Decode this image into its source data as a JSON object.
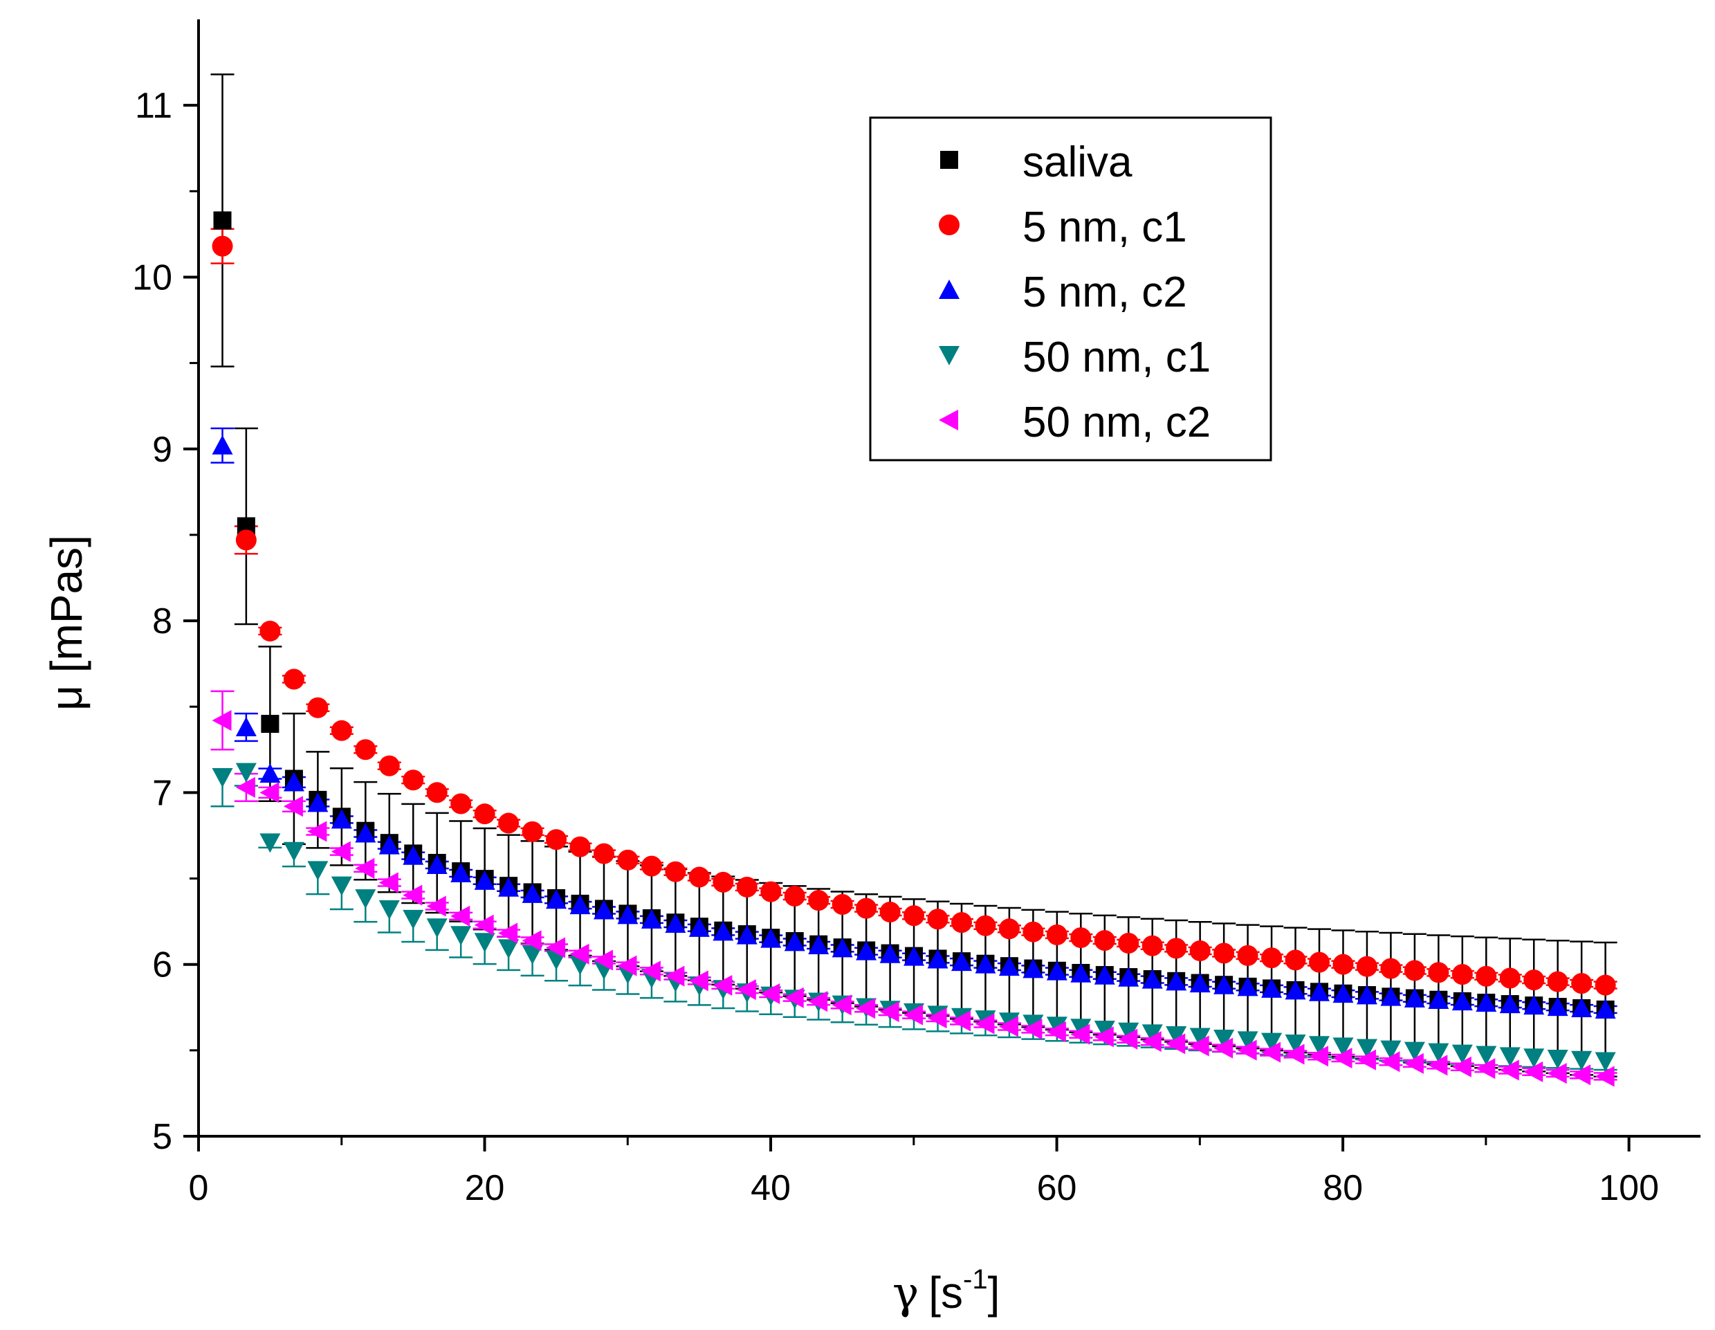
{
  "chart_data": {
    "type": "scatter",
    "title": "",
    "xlabel": "γ [s⁻¹]",
    "xlabel_parts": {
      "symbol": "γ",
      "open": "[s",
      "sup": "-1",
      "close": "]"
    },
    "ylabel": "μ [mPas]",
    "xlim": [
      0,
      105
    ],
    "ylim": [
      5,
      11.5
    ],
    "xticks": [
      0,
      20,
      40,
      60,
      80,
      100
    ],
    "yticks": [
      5,
      6,
      7,
      8,
      9,
      10,
      11
    ],
    "x_tick_labels": [
      "0",
      "20",
      "40",
      "60",
      "80",
      "100"
    ],
    "y_tick_labels": [
      "5",
      "6",
      "7",
      "8",
      "9",
      "10",
      "11"
    ],
    "legend_position": "top-right",
    "grid": false,
    "series": [
      {
        "name": "saliva",
        "marker": "square",
        "color": "#000000",
        "errorbar_style": "upper-lower",
        "points": [
          [
            1.67,
            10.33,
            0.85
          ],
          [
            3.33,
            8.55,
            0.57
          ],
          [
            5.0,
            7.4,
            0.45
          ],
          [
            6.67,
            7.08,
            0.38
          ]
        ],
        "tail_end": 5.73,
        "tail_err_start": 0.28,
        "tail_err_end": 0.39
      },
      {
        "name": "5 nm, c1",
        "marker": "circle",
        "color": "#ff0000",
        "errorbar_style": "small",
        "points": [
          [
            1.67,
            10.18,
            0.1
          ],
          [
            3.33,
            8.47,
            0.08
          ],
          [
            5.0,
            7.94,
            0.02
          ],
          [
            6.67,
            7.66,
            0.02
          ]
        ],
        "tail_end": 5.87,
        "tail_err": 0.02
      },
      {
        "name": "5 nm, c2",
        "marker": "triangle-up",
        "color": "#0000ff",
        "errorbar_style": "small",
        "points": [
          [
            1.67,
            9.02,
            0.1
          ],
          [
            3.33,
            7.38,
            0.08
          ],
          [
            5.0,
            7.11,
            0.03
          ],
          [
            6.67,
            7.06,
            0.03
          ]
        ],
        "tail_end": 5.73,
        "tail_err": 0.02
      },
      {
        "name": "50 nm, c1",
        "marker": "triangle-down",
        "color": "#008080",
        "errorbar_style": "lower",
        "points": [
          [
            1.67,
            7.09,
            0.17
          ],
          [
            3.33,
            7.12,
            0.08
          ],
          [
            5.0,
            6.71,
            0.03
          ],
          [
            6.67,
            6.66,
            0.09
          ]
        ],
        "tail_end": 5.43,
        "tail_err_start": 0.14,
        "tail_err_end": 0.05
      },
      {
        "name": "50 nm, c2",
        "marker": "triangle-left",
        "color": "#ff00ff",
        "errorbar_style": "upper-lower",
        "points": [
          [
            1.67,
            7.42,
            0.17
          ],
          [
            3.33,
            7.03,
            0.08
          ],
          [
            5.0,
            7.0,
            0.03
          ],
          [
            6.67,
            6.92,
            0.03
          ]
        ],
        "tail_end": 5.34,
        "tail_err": 0.02
      }
    ],
    "x_step": 1.667,
    "x_end": 100
  },
  "legend": {
    "items": [
      {
        "label": "saliva"
      },
      {
        "label": "5 nm, c1"
      },
      {
        "label": "5 nm, c2"
      },
      {
        "label": "50 nm, c1"
      },
      {
        "label": "50 nm, c2"
      }
    ]
  }
}
